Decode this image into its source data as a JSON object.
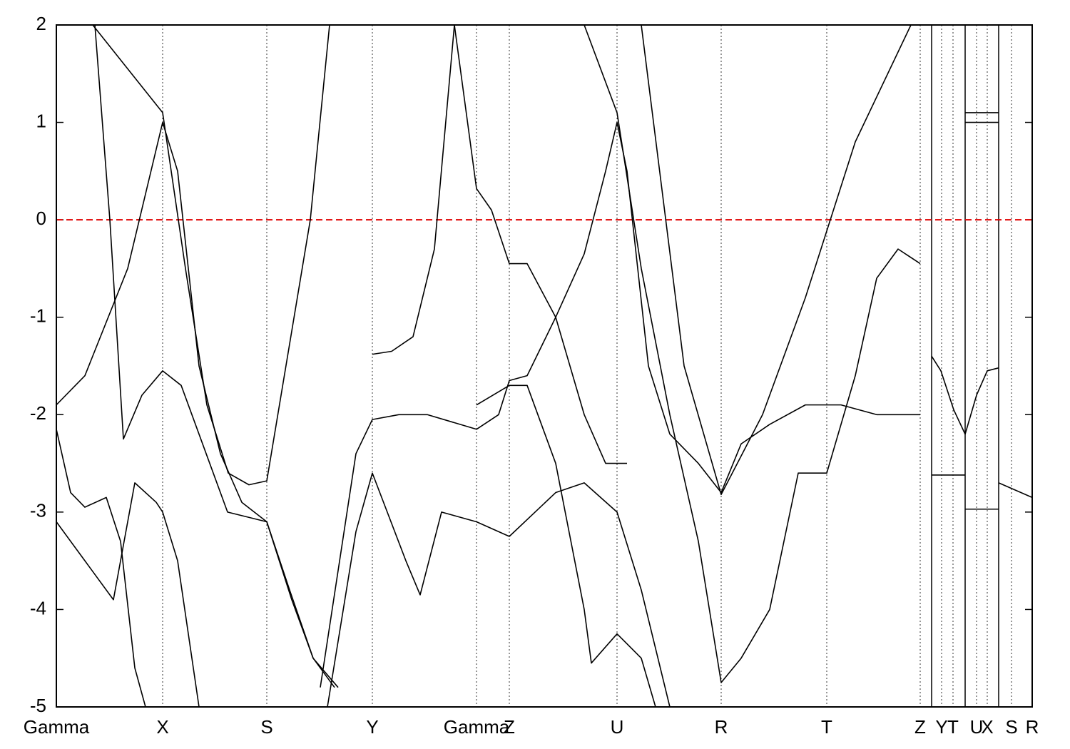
{
  "chart_data": {
    "type": "line",
    "xlim": [
      0,
      1368
    ],
    "ylim": [
      -5,
      2
    ],
    "yticks": [
      -5,
      -4,
      -3,
      -2,
      -1,
      0,
      1,
      2
    ],
    "xticks": [
      {
        "value": 0,
        "label": "Gamma"
      },
      {
        "value": 149,
        "label": "X"
      },
      {
        "value": 295,
        "label": "S"
      },
      {
        "value": 443,
        "label": "Y"
      },
      {
        "value": 589,
        "label": "Gamma"
      },
      {
        "value": 635,
        "label": "Z"
      },
      {
        "value": 786,
        "label": "U"
      },
      {
        "value": 932,
        "label": "R"
      },
      {
        "value": 1080,
        "label": "T"
      },
      {
        "value": 1211,
        "label": "Z"
      },
      {
        "value": 1241,
        "label": "Y"
      },
      {
        "value": 1257,
        "label": "T"
      },
      {
        "value": 1290,
        "label": "U"
      },
      {
        "value": 1305,
        "label": "X"
      },
      {
        "value": 1339,
        "label": "S"
      },
      {
        "value": 1368,
        "label": "R"
      }
    ],
    "grid": true,
    "breaks": [
      1227,
      1274,
      1321
    ],
    "fermi_level": 0,
    "fermi_color": "#e00000",
    "series": [
      {
        "color": "#000000",
        "x": [
          51,
          149,
          181,
          211,
          241,
          270,
          295,
          356,
          383
        ],
        "values": [
          2,
          1.1,
          -0.5,
          -1.9,
          -2.6,
          -2.72,
          -2.68,
          0,
          2
        ]
      },
      {
        "color": "#000000",
        "x": [
          0,
          40,
          100,
          149,
          170,
          200,
          230,
          260,
          295,
          327,
          360,
          390
        ],
        "values": [
          -1.9,
          -1.6,
          -0.5,
          1.0,
          0.5,
          -1.5,
          -2.4,
          -2.9,
          -3.1,
          -3.8,
          -4.5,
          -4.8
        ]
      },
      {
        "color": "#000000",
        "x": [
          54,
          75,
          94,
          120,
          149,
          175,
          210,
          240,
          295,
          330,
          360,
          395
        ],
        "values": [
          2,
          0,
          -2.25,
          -1.8,
          -1.55,
          -1.7,
          -2.4,
          -3.0,
          -3.1,
          -3.9,
          -4.5,
          -4.8
        ]
      },
      {
        "color": "#000000",
        "x": [
          0,
          20,
          40,
          70,
          90,
          110,
          125
        ],
        "values": [
          -2.15,
          -2.8,
          -2.95,
          -2.85,
          -3.3,
          -4.6,
          -5
        ]
      },
      {
        "color": "#000000",
        "x": [
          0,
          40,
          80,
          110,
          140,
          149,
          170,
          200
        ],
        "values": [
          -3.1,
          -3.5,
          -3.9,
          -2.7,
          -2.9,
          -3.0,
          -3.5,
          -5
        ]
      },
      {
        "color": "#000000",
        "x": [
          380,
          420,
          443,
          490,
          510,
          540,
          589,
          635,
          700,
          740,
          786,
          820,
          860
        ],
        "values": [
          -5,
          -3.2,
          -2.6,
          -3.5,
          -3.85,
          -3.0,
          -3.1,
          -3.25,
          -2.8,
          -2.7,
          -3.0,
          -3.8,
          -5
        ]
      },
      {
        "color": "#000000",
        "x": [
          370,
          420,
          443,
          480,
          520,
          589,
          620,
          635,
          660,
          700,
          740,
          770,
          786,
          800,
          830,
          860,
          900,
          932,
          960,
          1000,
          1050,
          1100,
          1150,
          1211
        ],
        "values": [
          -4.8,
          -2.4,
          -2.05,
          -2.0,
          -2.0,
          -2.15,
          -2.0,
          -1.65,
          -1.6,
          -1.0,
          -0.35,
          0.5,
          1.0,
          0.5,
          -1.5,
          -2.2,
          -2.5,
          -2.8,
          -2.3,
          -2.1,
          -1.9,
          -1.9,
          -2.0,
          -2.0
        ]
      },
      {
        "color": "#000000",
        "x": [
          443,
          470,
          500,
          530,
          558
        ],
        "values": [
          -1.38,
          -1.35,
          -1.2,
          -0.3,
          2
        ]
      },
      {
        "color": "#000000",
        "x": [
          558,
          589,
          610,
          635,
          660,
          700,
          740,
          770,
          800
        ],
        "values": [
          2,
          0.32,
          0.1,
          -0.45,
          -0.45,
          -1.0,
          -2.0,
          -2.5,
          -2.5
        ]
      },
      {
        "color": "#000000",
        "x": [
          589,
          635,
          660,
          700,
          740,
          750,
          786,
          820,
          840
        ],
        "values": [
          -1.9,
          -1.7,
          -1.7,
          -2.5,
          -4.0,
          -4.55,
          -4.25,
          -4.5,
          -5
        ]
      },
      {
        "color": "#000000",
        "x": [
          820,
          880,
          932,
          990,
          1050,
          1120,
          1198
        ],
        "values": [
          2,
          -1.5,
          -2.82,
          -2.0,
          -0.8,
          0.8,
          2
        ]
      },
      {
        "color": "#000000",
        "x": [
          740,
          786,
          820,
          860,
          900,
          932,
          960,
          1000,
          1040,
          1080,
          1120,
          1150,
          1180,
          1211
        ],
        "values": [
          2,
          1.1,
          -0.5,
          -2.0,
          -3.3,
          -4.75,
          -4.5,
          -4.0,
          -2.6,
          -2.6,
          -1.6,
          -0.6,
          -0.3,
          -0.45
        ]
      },
      {
        "color": "#000000",
        "x": [
          1227,
          1240,
          1258,
          1274,
          1290,
          1305,
          1321
        ],
        "values": [
          -1.4,
          -1.55,
          -1.95,
          -2.2,
          -1.8,
          -1.55,
          -1.52
        ]
      },
      {
        "color": "#000000",
        "x": [
          1227,
          1274
        ],
        "values": [
          -2.62,
          -2.62
        ]
      },
      {
        "color": "#000000",
        "x": [
          1274,
          1321
        ],
        "values": [
          1.1,
          1.1
        ]
      },
      {
        "color": "#000000",
        "x": [
          1274,
          1321
        ],
        "values": [
          1.0,
          1.0
        ]
      },
      {
        "color": "#000000",
        "x": [
          1274,
          1321
        ],
        "values": [
          -2.97,
          -2.97
        ]
      },
      {
        "color": "#000000",
        "x": [
          1321,
          1368
        ],
        "values": [
          -2.7,
          -2.85
        ]
      }
    ]
  }
}
